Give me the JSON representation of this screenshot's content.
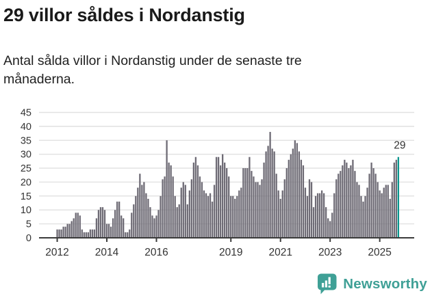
{
  "header": {
    "title": "29 villor såldes i Nordanstig",
    "subtitle": "Antal sålda villor i Nordanstig under de senaste tre månaderna."
  },
  "chart_data": {
    "type": "bar",
    "title": "29 villor såldes i Nordanstig",
    "xlabel": "",
    "ylabel": "",
    "x_start_month": "2012-01",
    "frequency": "monthly",
    "values": [
      3,
      3,
      3,
      4,
      4,
      5,
      5,
      6,
      7,
      9,
      9,
      8,
      3,
      2,
      2,
      2,
      3,
      3,
      3,
      7,
      10,
      11,
      11,
      10,
      5,
      5,
      4,
      7,
      10,
      13,
      13,
      8,
      7,
      2,
      2,
      3,
      9,
      12,
      15,
      18,
      23,
      19,
      20,
      16,
      14,
      11,
      8,
      7,
      8,
      10,
      15,
      21,
      22,
      35,
      27,
      26,
      22,
      15,
      11,
      12,
      18,
      20,
      19,
      12,
      17,
      21,
      27,
      29,
      26,
      22,
      20,
      17,
      16,
      15,
      16,
      13,
      19,
      29,
      29,
      26,
      30,
      27,
      25,
      22,
      15,
      15,
      14,
      15,
      17,
      18,
      25,
      25,
      25,
      29,
      24,
      22,
      20,
      20,
      19,
      21,
      27,
      31,
      33,
      38,
      32,
      31,
      23,
      17,
      14,
      17,
      21,
      25,
      28,
      30,
      32,
      35,
      34,
      31,
      28,
      26,
      18,
      15,
      21,
      20,
      11,
      15,
      16,
      16,
      17,
      16,
      11,
      7,
      6,
      9,
      16,
      21,
      23,
      24,
      26,
      28,
      27,
      25,
      26,
      28,
      24,
      20,
      19,
      15,
      13,
      15,
      18,
      23,
      27,
      25,
      23,
      20,
      17,
      16,
      18,
      19,
      19,
      14,
      20,
      27,
      28,
      29
    ],
    "highlight": {
      "index": 165,
      "value": 29,
      "label": "29"
    },
    "y_ticks": [
      0,
      5,
      10,
      15,
      20,
      25,
      30,
      35,
      40,
      45
    ],
    "ylim": [
      0,
      46
    ],
    "x_tick_labels": [
      "2012",
      "2014",
      "2016",
      "2019",
      "2021",
      "2023",
      "2025"
    ],
    "x_tick_month_indices": [
      0,
      24,
      48,
      84,
      108,
      132,
      156
    ],
    "grid": true,
    "legend": null,
    "colors": {
      "bar": "#6E6B75",
      "highlight": "#0A968E",
      "grid": "#E1E1E1",
      "axis": "#3A3A3A",
      "tick_text": "#333333",
      "annotation_text": "#333333"
    }
  },
  "footer": {
    "brand": "Newsworthy",
    "logo_icon": "newsworthy-bubble-chart-icon",
    "brand_color": "#3FA096"
  }
}
